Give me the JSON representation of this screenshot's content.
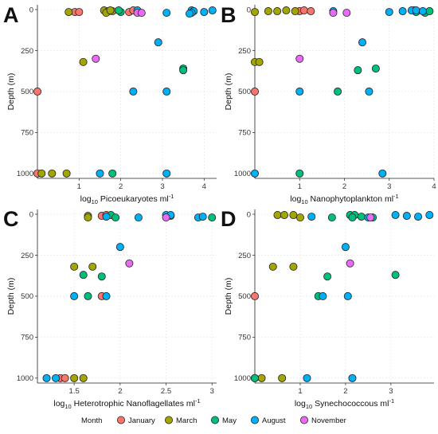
{
  "legend": {
    "title": "Month",
    "items": [
      {
        "label": "January",
        "color": "#F8766D"
      },
      {
        "label": "March",
        "color": "#A3A500"
      },
      {
        "label": "May",
        "color": "#00BF7D"
      },
      {
        "label": "August",
        "color": "#00B0F6"
      },
      {
        "label": "November",
        "color": "#E76BF3"
      }
    ]
  },
  "chart_data": [
    {
      "type": "scatter",
      "panel": "A",
      "xlabel_main": "log",
      "xlabel_sub": "10",
      "xlabel_rest": " Picoeukaryotes ml",
      "xlabel_sup": "-1",
      "ylabel": "Depth (m)",
      "xlim": [
        0,
        4.3
      ],
      "ylim": [
        0,
        1030
      ],
      "x_ticks": [
        1,
        2,
        3,
        4
      ],
      "y_ticks": [
        0,
        250,
        500,
        750,
        1000
      ],
      "y_reversed": true,
      "grid": true,
      "series": [
        {
          "name": "January",
          "points": [
            [
              0.9,
              15
            ],
            [
              1.0,
              15
            ],
            [
              2.2,
              15
            ],
            [
              2.3,
              5
            ],
            [
              0.0,
              500
            ],
            [
              0.0,
              1000
            ]
          ]
        },
        {
          "name": "March",
          "points": [
            [
              0.75,
              15
            ],
            [
              1.6,
              5
            ],
            [
              1.7,
              10
            ],
            [
              1.65,
              20
            ],
            [
              1.8,
              10
            ],
            [
              1.75,
              5
            ],
            [
              1.1,
              320
            ],
            [
              0.1,
              1000
            ],
            [
              0.35,
              1000
            ],
            [
              0.7,
              1000
            ]
          ]
        },
        {
          "name": "May",
          "points": [
            [
              2.0,
              15
            ],
            [
              1.95,
              5
            ],
            [
              3.5,
              360
            ],
            [
              3.5,
              370
            ],
            [
              1.8,
              1000
            ]
          ]
        },
        {
          "name": "August",
          "points": [
            [
              2.4,
              5
            ],
            [
              3.1,
              20
            ],
            [
              3.7,
              5
            ],
            [
              3.75,
              10
            ],
            [
              3.7,
              20
            ],
            [
              4.2,
              5
            ],
            [
              3.65,
              25
            ],
            [
              4.0,
              15
            ],
            [
              2.9,
              200
            ],
            [
              2.3,
              500
            ],
            [
              3.1,
              500
            ],
            [
              1.5,
              1000
            ],
            [
              3.1,
              1000
            ]
          ]
        },
        {
          "name": "November",
          "points": [
            [
              2.4,
              20
            ],
            [
              2.5,
              20
            ],
            [
              1.4,
              300
            ]
          ]
        }
      ]
    },
    {
      "type": "scatter",
      "panel": "B",
      "xlabel_main": "log",
      "xlabel_sub": "10",
      "xlabel_rest": " Nanophytoplankton ml",
      "xlabel_sup": "-1",
      "ylabel": "Depth (m)",
      "xlim": [
        0,
        4.0
      ],
      "ylim": [
        0,
        1030
      ],
      "x_ticks": [
        1,
        2,
        3,
        4
      ],
      "y_ticks": [
        0,
        250,
        500,
        750,
        1000
      ],
      "y_reversed": true,
      "grid": true,
      "series": [
        {
          "name": "January",
          "points": [
            [
              1.0,
              10
            ],
            [
              1.1,
              5
            ],
            [
              1.25,
              10
            ],
            [
              0.0,
              500
            ]
          ]
        },
        {
          "name": "March",
          "points": [
            [
              0.0,
              15
            ],
            [
              0.3,
              10
            ],
            [
              0.5,
              10
            ],
            [
              0.7,
              5
            ],
            [
              0.9,
              10
            ],
            [
              0.0,
              320
            ],
            [
              0.1,
              320
            ]
          ]
        },
        {
          "name": "May",
          "points": [
            [
              3.55,
              5
            ],
            [
              3.6,
              15
            ],
            [
              3.8,
              20
            ],
            [
              3.9,
              10
            ],
            [
              2.3,
              370
            ],
            [
              2.7,
              360
            ],
            [
              1.85,
              500
            ],
            [
              1.0,
              1000
            ]
          ]
        },
        {
          "name": "August",
          "points": [
            [
              3.0,
              15
            ],
            [
              3.3,
              10
            ],
            [
              3.5,
              5
            ],
            [
              3.6,
              5
            ],
            [
              3.75,
              10
            ],
            [
              1.75,
              10
            ],
            [
              2.4,
              200
            ],
            [
              1.0,
              500
            ],
            [
              2.55,
              500
            ],
            [
              0.0,
              1000
            ],
            [
              2.85,
              1000
            ]
          ]
        },
        {
          "name": "November",
          "points": [
            [
              1.75,
              20
            ],
            [
              2.05,
              20
            ],
            [
              1.0,
              300
            ]
          ]
        }
      ]
    },
    {
      "type": "scatter",
      "panel": "C",
      "xlabel_main": "log",
      "xlabel_sub": "10",
      "xlabel_rest": " Heterotrophic Nanoflagellates ml",
      "xlabel_sup": "-1",
      "ylabel": "Depth (m)",
      "xlim": [
        1.1,
        3.05
      ],
      "ylim": [
        0,
        1030
      ],
      "x_ticks": [
        1.5,
        2.0,
        2.5,
        3.0
      ],
      "x_tick_labels": [
        "1.5",
        "2",
        "2.5",
        "3"
      ],
      "y_ticks": [
        0,
        250,
        500,
        750,
        1000
      ],
      "y_reversed": true,
      "grid": true,
      "series": [
        {
          "name": "January",
          "points": [
            [
              1.8,
              10
            ],
            [
              1.85,
              5
            ],
            [
              1.8,
              500
            ],
            [
              1.35,
              1000
            ],
            [
              1.4,
              1000
            ]
          ]
        },
        {
          "name": "March",
          "points": [
            [
              1.65,
              10
            ],
            [
              1.65,
              20
            ],
            [
              1.5,
              320
            ],
            [
              1.7,
              320
            ],
            [
              1.5,
              1000
            ],
            [
              1.6,
              1000
            ]
          ]
        },
        {
          "name": "May",
          "points": [
            [
              1.9,
              5
            ],
            [
              1.95,
              20
            ],
            [
              2.55,
              10
            ],
            [
              3.0,
              20
            ],
            [
              1.6,
              370
            ],
            [
              1.8,
              380
            ],
            [
              1.65,
              500
            ]
          ]
        },
        {
          "name": "August",
          "points": [
            [
              1.85,
              15
            ],
            [
              2.2,
              20
            ],
            [
              2.5,
              5
            ],
            [
              2.55,
              5
            ],
            [
              2.85,
              20
            ],
            [
              2.9,
              15
            ],
            [
              2.0,
              200
            ],
            [
              1.5,
              500
            ],
            [
              1.85,
              500
            ],
            [
              1.2,
              1000
            ],
            [
              1.3,
              1000
            ]
          ]
        },
        {
          "name": "November",
          "points": [
            [
              2.5,
              20
            ],
            [
              2.1,
              300
            ]
          ]
        }
      ]
    },
    {
      "type": "scatter",
      "panel": "D",
      "xlabel_main": "log",
      "xlabel_sub": "10",
      "xlabel_rest": " Synechococcous ml",
      "xlabel_sup": "-1",
      "ylabel": "Depth (m)",
      "xlim": [
        0,
        3.95
      ],
      "ylim": [
        0,
        1030
      ],
      "x_ticks": [
        1,
        2,
        3
      ],
      "y_ticks": [
        0,
        250,
        500,
        750,
        1000
      ],
      "y_reversed": true,
      "grid": true,
      "series": [
        {
          "name": "January",
          "points": [
            [
              0.0,
              500
            ]
          ]
        },
        {
          "name": "March",
          "points": [
            [
              0.5,
              5
            ],
            [
              0.65,
              5
            ],
            [
              0.85,
              5
            ],
            [
              1.0,
              20
            ],
            [
              0.4,
              320
            ],
            [
              0.85,
              320
            ],
            [
              0.0,
              1000
            ],
            [
              0.15,
              1000
            ],
            [
              0.6,
              1000
            ]
          ]
        },
        {
          "name": "May",
          "points": [
            [
              1.7,
              20
            ],
            [
              2.1,
              5
            ],
            [
              2.2,
              5
            ],
            [
              2.15,
              20
            ],
            [
              2.35,
              15
            ],
            [
              2.6,
              20
            ],
            [
              1.6,
              380
            ],
            [
              3.1,
              370
            ],
            [
              1.4,
              500
            ],
            [
              0.0,
              1000
            ]
          ]
        },
        {
          "name": "August",
          "points": [
            [
              1.25,
              15
            ],
            [
              2.5,
              20
            ],
            [
              3.1,
              5
            ],
            [
              3.35,
              10
            ],
            [
              3.6,
              15
            ],
            [
              3.85,
              5
            ],
            [
              2.0,
              200
            ],
            [
              1.5,
              500
            ],
            [
              2.05,
              500
            ],
            [
              1.15,
              1000
            ],
            [
              2.15,
              1000
            ]
          ]
        },
        {
          "name": "November",
          "points": [
            [
              2.55,
              20
            ],
            [
              2.1,
              300
            ]
          ]
        }
      ]
    }
  ]
}
